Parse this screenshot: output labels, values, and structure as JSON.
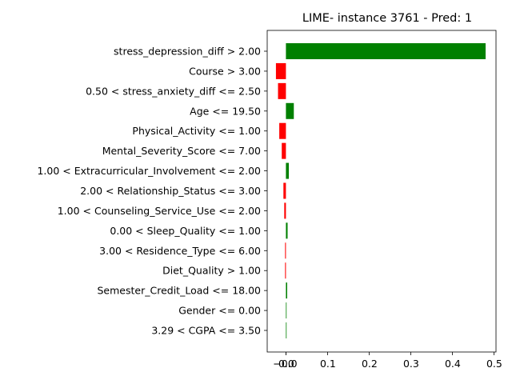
{
  "chart_data": {
    "type": "bar",
    "orientation": "horizontal",
    "title": "LIME- instance 3761 - Pred: 1",
    "xlabel": "",
    "ylabel": "",
    "categories": [
      "stress_depression_diff > 2.00",
      "Course > 3.00",
      "0.50 < stress_anxiety_diff <= 2.50",
      "Age <= 19.50",
      "Physical_Activity <= 1.00",
      "Mental_Severity_Score <= 7.00",
      "1.00 < Extracurricular_Involvement <= 2.00",
      "2.00 < Relationship_Status <= 3.00",
      "1.00 < Counseling_Service_Use <= 2.00",
      "0.00 < Sleep_Quality <= 1.00",
      "3.00 < Residence_Type <= 6.00",
      "Diet_Quality > 1.00",
      "Semester_Credit_Load <= 18.00",
      "Gender <= 0.00",
      "3.29 < CGPA <= 3.50"
    ],
    "values": [
      0.48,
      -0.024,
      -0.019,
      0.019,
      -0.016,
      -0.01,
      0.007,
      -0.006,
      -0.004,
      0.004,
      -0.002,
      -0.002,
      0.003,
      0.001,
      0.0
    ],
    "xlim": [
      -0.045,
      0.505
    ],
    "xticks": [
      0.0,
      0.1,
      0.2,
      0.3,
      0.4,
      0.5
    ],
    "xtick_labels": [
      "0.0",
      "0.1",
      "0.2",
      "0.3",
      "0.4",
      "0.5"
    ],
    "extra_tick": {
      "value": -0.0,
      "label": "−0.0"
    },
    "positive_color": "#008000",
    "negative_color": "#ff0000",
    "grid": false,
    "legend": "none"
  }
}
